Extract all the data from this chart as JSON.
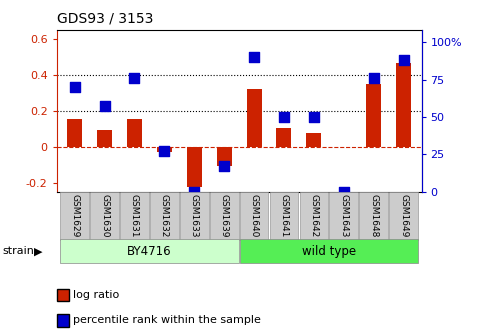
{
  "title": "GDS93 / 3153",
  "categories": [
    "GSM1629",
    "GSM1630",
    "GSM1631",
    "GSM1632",
    "GSM1633",
    "GSM1639",
    "GSM1640",
    "GSM1641",
    "GSM1642",
    "GSM1643",
    "GSM1648",
    "GSM1649"
  ],
  "log_ratio": [
    0.155,
    0.095,
    0.155,
    -0.03,
    -0.225,
    -0.105,
    0.32,
    0.105,
    0.075,
    0.0,
    0.35,
    0.465
  ],
  "percentile_rank": [
    70,
    57,
    76,
    27,
    0,
    17,
    90,
    50,
    50,
    0,
    76,
    88
  ],
  "bar_color": "#cc2200",
  "dot_color": "#0000cc",
  "ylim_left": [
    -0.25,
    0.65
  ],
  "ylim_right": [
    0,
    108
  ],
  "yticks_left": [
    -0.2,
    0.0,
    0.2,
    0.4,
    0.6
  ],
  "ytick_labels_left": [
    "-0.2",
    "0",
    "0.2",
    "0.4",
    "0.6"
  ],
  "yticks_right": [
    0,
    25,
    50,
    75,
    100
  ],
  "ytick_labels_right": [
    "0",
    "25",
    "50",
    "75",
    "100%"
  ],
  "hlines": [
    0.2,
    0.4
  ],
  "zero_line_color": "#cc2200",
  "grid_color": "#000000",
  "strain_groups": [
    {
      "label": "BY4716",
      "start": 0,
      "end": 5,
      "color": "#ccffcc"
    },
    {
      "label": "wild type",
      "start": 6,
      "end": 11,
      "color": "#55ee55"
    }
  ],
  "strain_label": "strain",
  "legend_entries": [
    {
      "label": "log ratio",
      "color": "#cc2200"
    },
    {
      "label": "percentile rank within the sample",
      "color": "#0000cc"
    }
  ],
  "bar_width": 0.5,
  "dot_size": 55,
  "tick_label_color_left": "#cc2200",
  "tick_label_color_right": "#0000cc",
  "background_xtick": "#cccccc"
}
